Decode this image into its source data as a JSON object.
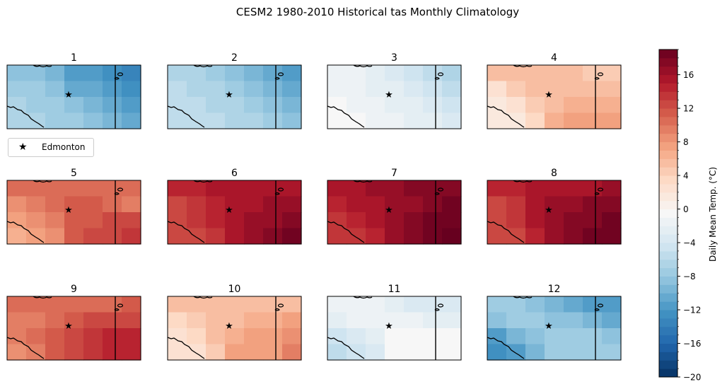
{
  "chart_data": {
    "type": "heatmap",
    "title": "CESM2 1980-2010 Historical tas Monthly Climatology",
    "panel_titles": [
      "1",
      "2",
      "3",
      "4",
      "5",
      "6",
      "7",
      "8",
      "9",
      "10",
      "11",
      "12"
    ],
    "grid": "7 columns x 4 rows per panel",
    "marker": {
      "label": "Edmonton",
      "symbol": "★"
    },
    "colorbar": {
      "label": "Daily Mean Temp. (°C)",
      "colormap": "RdBu_r",
      "vmin": -20,
      "vmax": 19,
      "ticks": [
        -20,
        -16,
        -12,
        -8,
        -4,
        0,
        4,
        8,
        12,
        16
      ],
      "tick_labels": [
        "−20",
        "−16",
        "−12",
        "−8",
        "−4",
        "0",
        "4",
        "8",
        "12",
        "16"
      ]
    },
    "months": [
      {
        "month": "1",
        "values": [
          [
            -9,
            -9,
            -10,
            -12,
            -12,
            -13,
            -14
          ],
          [
            -8,
            -8,
            -9,
            -11,
            -11,
            -12,
            -13
          ],
          [
            -7,
            -8,
            -8,
            -9,
            -10,
            -11,
            -12
          ],
          [
            -7,
            -7,
            -8,
            -8,
            -9,
            -10,
            -11
          ]
        ]
      },
      {
        "month": "2",
        "values": [
          [
            -7,
            -7,
            -8,
            -9,
            -10,
            -11,
            -12
          ],
          [
            -6,
            -7,
            -7,
            -8,
            -9,
            -10,
            -11
          ],
          [
            -6,
            -6,
            -7,
            -7,
            -8,
            -9,
            -10
          ],
          [
            -6,
            -6,
            -6,
            -7,
            -7,
            -8,
            -9
          ]
        ]
      },
      {
        "month": "3",
        "values": [
          [
            -2,
            -2,
            -3,
            -4,
            -5,
            -6,
            -7
          ],
          [
            -2,
            -2,
            -3,
            -3,
            -4,
            -5,
            -6
          ],
          [
            -1,
            -2,
            -2,
            -3,
            -3,
            -4,
            -5
          ],
          [
            -1,
            -1,
            -2,
            -2,
            -3,
            -3,
            -4
          ]
        ]
      },
      {
        "month": "4",
        "values": [
          [
            5,
            5,
            5,
            5,
            5,
            4,
            4
          ],
          [
            2,
            4,
            5,
            5,
            5,
            5,
            5
          ],
          [
            1,
            2,
            4,
            5,
            6,
            6,
            6
          ],
          [
            1,
            1,
            3,
            6,
            7,
            7,
            7
          ]
        ]
      },
      {
        "month": "5",
        "values": [
          [
            10,
            10,
            10,
            10,
            10,
            10,
            10
          ],
          [
            8,
            9,
            10,
            11,
            11,
            10,
            9
          ],
          [
            7,
            8,
            9,
            11,
            11,
            12,
            12
          ],
          [
            6,
            7,
            8,
            11,
            12,
            12,
            13
          ]
        ]
      },
      {
        "month": "6",
        "values": [
          [
            14,
            14,
            15,
            15,
            15,
            15,
            15
          ],
          [
            12,
            13,
            14,
            15,
            15,
            16,
            16
          ],
          [
            12,
            13,
            14,
            15,
            16,
            16,
            17
          ],
          [
            12,
            12,
            13,
            15,
            16,
            17,
            18
          ]
        ]
      },
      {
        "month": "7",
        "values": [
          [
            15,
            15,
            16,
            16,
            17,
            17,
            17
          ],
          [
            14,
            15,
            15,
            16,
            16,
            17,
            18
          ],
          [
            13,
            14,
            15,
            16,
            17,
            18,
            18
          ],
          [
            13,
            13,
            14,
            16,
            17,
            18,
            19
          ]
        ]
      },
      {
        "month": "8",
        "values": [
          [
            14,
            14,
            15,
            15,
            15,
            15,
            16
          ],
          [
            12,
            13,
            15,
            16,
            16,
            17,
            17
          ],
          [
            12,
            13,
            15,
            16,
            17,
            17,
            18
          ],
          [
            12,
            12,
            14,
            16,
            17,
            18,
            18
          ]
        ]
      },
      {
        "month": "9",
        "values": [
          [
            10,
            10,
            10,
            10,
            10,
            10,
            11
          ],
          [
            9,
            9,
            10,
            11,
            12,
            12,
            12
          ],
          [
            9,
            10,
            11,
            12,
            13,
            14,
            14
          ],
          [
            8,
            9,
            11,
            12,
            13,
            14,
            14
          ]
        ]
      },
      {
        "month": "10",
        "values": [
          [
            5,
            5,
            5,
            5,
            5,
            5,
            5
          ],
          [
            3,
            4,
            5,
            5,
            6,
            6,
            7
          ],
          [
            2,
            3,
            5,
            6,
            7,
            7,
            8
          ],
          [
            2,
            2,
            4,
            7,
            7,
            7,
            9
          ]
        ]
      },
      {
        "month": "11",
        "values": [
          [
            -2,
            -2,
            -2,
            -3,
            -4,
            -4,
            -4
          ],
          [
            -3,
            -2,
            -2,
            -2,
            -2,
            -3,
            -3
          ],
          [
            -5,
            -4,
            -3,
            -1,
            -1,
            -1,
            -1
          ],
          [
            -6,
            -5,
            -4,
            -1,
            -1,
            -1,
            -1
          ]
        ]
      },
      {
        "month": "12",
        "values": [
          [
            -8,
            -8,
            -9,
            -10,
            -11,
            -12,
            -12
          ],
          [
            -9,
            -8,
            -8,
            -9,
            -9,
            -10,
            -11
          ],
          [
            -12,
            -10,
            -9,
            -8,
            -8,
            -8,
            -9
          ],
          [
            -13,
            -12,
            -10,
            -8,
            -8,
            -8,
            -8
          ]
        ]
      }
    ]
  }
}
